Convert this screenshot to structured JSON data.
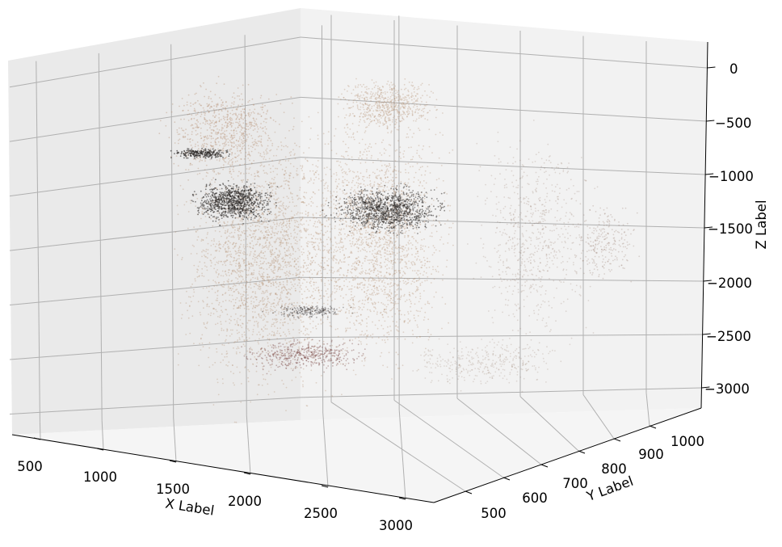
{
  "chart_data": {
    "type": "scatter",
    "projection": "3d",
    "title": "",
    "xlabel": "X Label",
    "ylabel": "Y Label",
    "zlabel": "Z Label",
    "xlim": [
      400,
      3050
    ],
    "ylim": [
      450,
      1050
    ],
    "zlim": [
      -3150,
      150
    ],
    "xticks": [
      "500",
      "1000",
      "1500",
      "2000",
      "2500",
      "3000"
    ],
    "yticks": [
      "500",
      "600",
      "700",
      "800",
      "900",
      "1000"
    ],
    "zticks": [
      "0",
      "−500",
      "−1000",
      "−1500",
      "−2000",
      "−2500",
      "−3000"
    ],
    "grid": true,
    "description": "Dense 3D point cloud; points colored by sampled RGB",
    "colors": {
      "skin": "#b89478",
      "skin_dark": "#8c6d5a",
      "shadow": "#2a2624",
      "lip": "#7d4a48",
      "pane_left": "#eaeaea",
      "pane_back": "#f2f2f2",
      "pane_floor": "#f5f5f5",
      "grid": "#b0b0b0"
    }
  }
}
